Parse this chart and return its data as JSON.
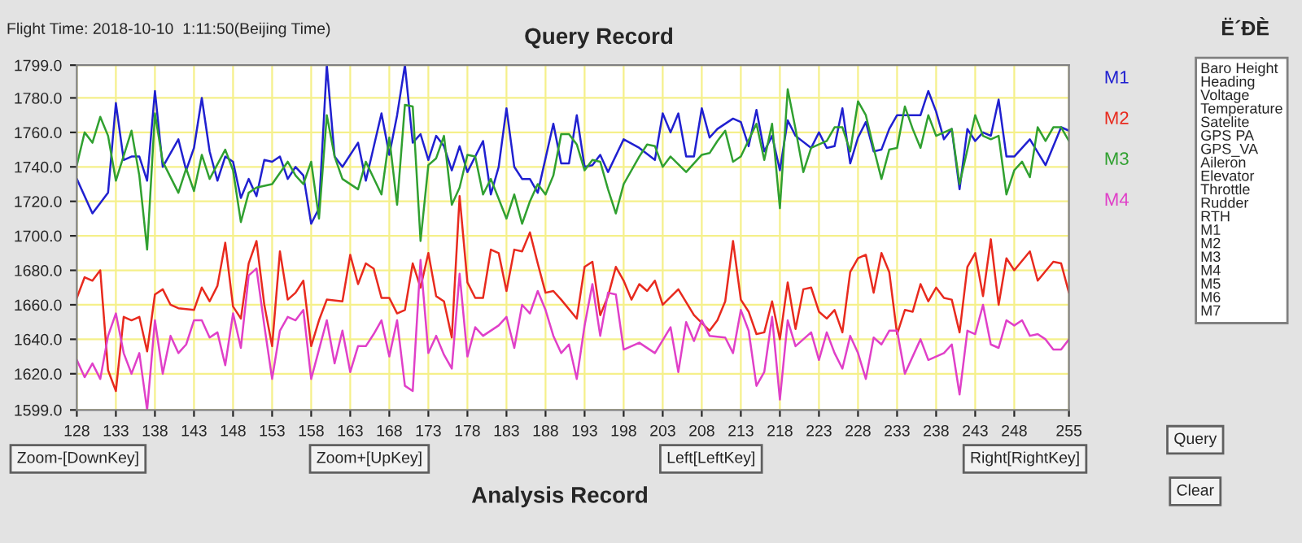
{
  "chart_data": {
    "type": "line",
    "title": "Query Record",
    "annotations": [
      "Flight Time: 2018-10-10  1:11:50(Beijing Time)",
      "Ë´ÐÈ",
      "Zoom-[DownKey]",
      "Zoom+[UpKey]",
      "Left[LeftKey]",
      "Right[RightKey]",
      "Analysis Record",
      "Query",
      "Clear",
      "Baro Height\nHeading\nVoltage\nTemperature\nSatelite\nGPS PA\nGPS_VA\nAileron\nElevator\nThrottle\nRudder\nRTH\nM1\nM2\nM3\nM4\nM5\nM6\nM7"
    ],
    "xlim": [
      128,
      255
    ],
    "xticks": [
      128,
      133,
      138,
      143,
      148,
      153,
      158,
      163,
      168,
      173,
      178,
      183,
      188,
      193,
      198,
      203,
      208,
      213,
      218,
      223,
      228,
      233,
      238,
      243,
      248,
      255
    ],
    "ylim": [
      1599,
      1799
    ],
    "yticks": [
      {
        "value": 1599,
        "label": "1599.0"
      },
      {
        "value": 1620,
        "label": "1620.0"
      },
      {
        "value": 1640,
        "label": "1640.0"
      },
      {
        "value": 1660,
        "label": "1660.0"
      },
      {
        "value": 1680,
        "label": "1680.0"
      },
      {
        "value": 1700,
        "label": "1700.0"
      },
      {
        "value": 1720,
        "label": "1720.0"
      },
      {
        "value": 1740,
        "label": "1740.0"
      },
      {
        "value": 1760,
        "label": "1760.0"
      },
      {
        "value": 1780,
        "label": "1780.0"
      },
      {
        "value": 1799,
        "label": "1799.0"
      }
    ],
    "grid": true,
    "legend": "right",
    "marker": "none",
    "line_style": "solid",
    "series": [
      {
        "name": "M1",
        "color": "#2020d0",
        "x": [
          128,
          130,
          132,
          133,
          134,
          135,
          136,
          137,
          138,
          139,
          141,
          142,
          143,
          144,
          145,
          146,
          147,
          148,
          149,
          150,
          151,
          152,
          153,
          154,
          155,
          156,
          157,
          158,
          159,
          160,
          161,
          162,
          164,
          165,
          167,
          168,
          169,
          170,
          171,
          172,
          173,
          174,
          175,
          176,
          177,
          178,
          180,
          181,
          182,
          183,
          184,
          185,
          186,
          187,
          189,
          190,
          191,
          192,
          193,
          194,
          195,
          196,
          198,
          200,
          202,
          203,
          204,
          205,
          206,
          207,
          208,
          209,
          210,
          212,
          213,
          214,
          215,
          216,
          217,
          218,
          219,
          220,
          222,
          223,
          224,
          225,
          226,
          227,
          228,
          229,
          230,
          231,
          232,
          233,
          236,
          237,
          238,
          239,
          240,
          241,
          242,
          243,
          244,
          245,
          246,
          247,
          248,
          250,
          252,
          254,
          255
        ],
        "values": [
          1733,
          1713,
          1725,
          1777,
          1744,
          1746,
          1746,
          1732,
          1784,
          1740,
          1756,
          1738,
          1751,
          1780,
          1749,
          1732,
          1746,
          1743,
          1722,
          1733,
          1723,
          1744,
          1743,
          1746,
          1733,
          1740,
          1735,
          1707,
          1716,
          1799,
          1746,
          1740,
          1754,
          1732,
          1771,
          1747,
          1770,
          1799,
          1754,
          1759,
          1744,
          1758,
          1752,
          1738,
          1752,
          1737,
          1755,
          1724,
          1740,
          1774,
          1740,
          1733,
          1733,
          1725,
          1765,
          1742,
          1742,
          1770,
          1740,
          1741,
          1747,
          1737,
          1756,
          1751,
          1744,
          1771,
          1760,
          1771,
          1746,
          1746,
          1774,
          1757,
          1762,
          1768,
          1766,
          1752,
          1773,
          1749,
          1758,
          1738,
          1767,
          1758,
          1751,
          1760,
          1751,
          1752,
          1774,
          1742,
          1757,
          1766,
          1749,
          1750,
          1762,
          1770,
          1770,
          1784,
          1772,
          1756,
          1762,
          1727,
          1762,
          1755,
          1760,
          1758,
          1779,
          1746,
          1746,
          1756,
          1741,
          1763,
          1761
        ]
      },
      {
        "name": "M2",
        "color": "#e82a1e",
        "x": [
          128,
          129,
          130,
          131,
          132,
          133,
          134,
          135,
          136,
          137,
          138,
          139,
          140,
          141,
          143,
          144,
          145,
          146,
          147,
          148,
          149,
          150,
          151,
          152,
          153,
          154,
          155,
          156,
          157,
          158,
          159,
          160,
          162,
          163,
          164,
          165,
          166,
          167,
          168,
          169,
          170,
          171,
          172,
          173,
          174,
          175,
          176,
          177,
          178,
          179,
          180,
          181,
          182,
          183,
          184,
          185,
          186,
          187,
          188,
          189,
          190,
          192,
          193,
          194,
          195,
          196,
          197,
          198,
          199,
          200,
          201,
          202,
          203,
          205,
          207,
          209,
          210,
          211,
          212,
          213,
          214,
          215,
          216,
          217,
          218,
          219,
          220,
          221,
          222,
          223,
          224,
          225,
          226,
          227,
          228,
          229,
          230,
          231,
          232,
          233,
          234,
          235,
          236,
          237,
          238,
          239,
          240,
          241,
          242,
          243,
          244,
          245,
          246,
          247,
          248,
          250,
          251,
          253,
          254,
          255
        ],
        "values": [
          1664,
          1676,
          1674,
          1680,
          1622,
          1610,
          1653,
          1651,
          1653,
          1633,
          1666,
          1669,
          1660,
          1658,
          1657,
          1670,
          1662,
          1671,
          1696,
          1659,
          1652,
          1684,
          1697,
          1660,
          1636,
          1691,
          1663,
          1667,
          1674,
          1636,
          1651,
          1663,
          1662,
          1689,
          1672,
          1684,
          1681,
          1664,
          1664,
          1655,
          1657,
          1684,
          1670,
          1690,
          1665,
          1662,
          1641,
          1723,
          1673,
          1664,
          1664,
          1692,
          1690,
          1668,
          1692,
          1691,
          1702,
          1684,
          1667,
          1668,
          1663,
          1652,
          1682,
          1685,
          1654,
          1665,
          1682,
          1674,
          1663,
          1672,
          1668,
          1674,
          1660,
          1669,
          1654,
          1645,
          1651,
          1662,
          1697,
          1663,
          1656,
          1643,
          1644,
          1662,
          1640,
          1673,
          1646,
          1669,
          1670,
          1656,
          1652,
          1657,
          1644,
          1679,
          1687,
          1689,
          1667,
          1690,
          1679,
          1643,
          1657,
          1656,
          1672,
          1662,
          1670,
          1664,
          1663,
          1644,
          1682,
          1690,
          1665,
          1698,
          1660,
          1687,
          1680,
          1691,
          1674,
          1685,
          1684,
          1667
        ]
      },
      {
        "name": "M3",
        "color": "#30a030",
        "x": [
          128,
          129,
          130,
          131,
          132,
          133,
          135,
          136,
          137,
          138,
          139,
          141,
          142,
          143,
          144,
          145,
          147,
          148,
          149,
          150,
          151,
          153,
          155,
          156,
          157,
          158,
          159,
          160,
          161,
          162,
          164,
          165,
          167,
          168,
          169,
          170,
          171,
          172,
          173,
          174,
          175,
          176,
          177,
          178,
          179,
          180,
          181,
          183,
          184,
          185,
          186,
          187,
          188,
          189,
          190,
          191,
          192,
          193,
          194,
          195,
          196,
          197,
          198,
          200,
          201,
          202,
          203,
          204,
          206,
          208,
          209,
          210,
          211,
          212,
          213,
          215,
          216,
          217,
          218,
          219,
          220,
          221,
          222,
          224,
          225,
          226,
          227,
          228,
          229,
          230,
          231,
          232,
          233,
          234,
          235,
          236,
          237,
          238,
          240,
          241,
          243,
          244,
          245,
          246,
          247,
          248,
          249,
          250,
          251,
          252,
          253,
          254,
          255
        ],
        "values": [
          1741,
          1760,
          1754,
          1769,
          1758,
          1732,
          1761,
          1735,
          1692,
          1771,
          1743,
          1725,
          1739,
          1726,
          1747,
          1733,
          1750,
          1738,
          1708,
          1725,
          1728,
          1730,
          1743,
          1735,
          1730,
          1743,
          1710,
          1770,
          1746,
          1733,
          1727,
          1743,
          1724,
          1757,
          1718,
          1776,
          1775,
          1697,
          1741,
          1745,
          1758,
          1718,
          1728,
          1747,
          1746,
          1724,
          1733,
          1710,
          1724,
          1707,
          1720,
          1730,
          1724,
          1735,
          1759,
          1759,
          1753,
          1738,
          1744,
          1743,
          1727,
          1713,
          1730,
          1746,
          1753,
          1752,
          1740,
          1746,
          1737,
          1747,
          1748,
          1755,
          1761,
          1743,
          1746,
          1765,
          1744,
          1765,
          1716,
          1785,
          1762,
          1737,
          1751,
          1755,
          1763,
          1763,
          1749,
          1778,
          1770,
          1751,
          1733,
          1750,
          1751,
          1775,
          1762,
          1751,
          1770,
          1758,
          1762,
          1730,
          1770,
          1758,
          1756,
          1758,
          1724,
          1738,
          1743,
          1734,
          1763,
          1755,
          1763,
          1763,
          1755
        ]
      },
      {
        "name": "M4",
        "color": "#e040c8",
        "x": [
          128,
          129,
          130,
          131,
          132,
          133,
          134,
          135,
          136,
          137,
          138,
          139,
          140,
          141,
          142,
          143,
          144,
          145,
          146,
          147,
          148,
          149,
          150,
          151,
          152,
          153,
          154,
          155,
          156,
          157,
          158,
          159,
          160,
          161,
          162,
          163,
          164,
          165,
          166,
          167,
          168,
          169,
          170,
          171,
          172,
          173,
          174,
          175,
          176,
          177,
          178,
          179,
          180,
          182,
          183,
          184,
          185,
          186,
          187,
          188,
          189,
          190,
          191,
          192,
          193,
          194,
          195,
          196,
          197,
          198,
          200,
          202,
          204,
          205,
          206,
          207,
          208,
          209,
          211,
          212,
          213,
          214,
          215,
          216,
          217,
          218,
          219,
          220,
          222,
          223,
          224,
          225,
          226,
          227,
          228,
          229,
          230,
          231,
          232,
          233,
          234,
          236,
          237,
          239,
          240,
          241,
          242,
          243,
          244,
          245,
          246,
          247,
          248,
          249,
          250,
          251,
          252,
          253,
          254,
          255
        ],
        "values": [
          1628,
          1618,
          1626,
          1617,
          1642,
          1655,
          1632,
          1620,
          1632,
          1599,
          1651,
          1620,
          1642,
          1632,
          1637,
          1651,
          1651,
          1641,
          1644,
          1625,
          1655,
          1635,
          1677,
          1681,
          1648,
          1617,
          1645,
          1653,
          1651,
          1657,
          1617,
          1634,
          1651,
          1626,
          1645,
          1621,
          1636,
          1636,
          1643,
          1651,
          1630,
          1651,
          1613,
          1610,
          1686,
          1632,
          1642,
          1631,
          1623,
          1678,
          1630,
          1647,
          1642,
          1648,
          1653,
          1635,
          1660,
          1655,
          1668,
          1657,
          1642,
          1632,
          1637,
          1617,
          1648,
          1672,
          1642,
          1667,
          1666,
          1634,
          1638,
          1632,
          1647,
          1621,
          1650,
          1639,
          1651,
          1642,
          1641,
          1632,
          1657,
          1645,
          1613,
          1621,
          1653,
          1605,
          1651,
          1636,
          1644,
          1628,
          1644,
          1632,
          1623,
          1642,
          1632,
          1617,
          1641,
          1637,
          1645,
          1645,
          1620,
          1640,
          1628,
          1632,
          1637,
          1608,
          1645,
          1643,
          1660,
          1637,
          1635,
          1651,
          1648,
          1651,
          1642,
          1643,
          1640,
          1634,
          1634,
          1640
        ]
      }
    ]
  }
}
